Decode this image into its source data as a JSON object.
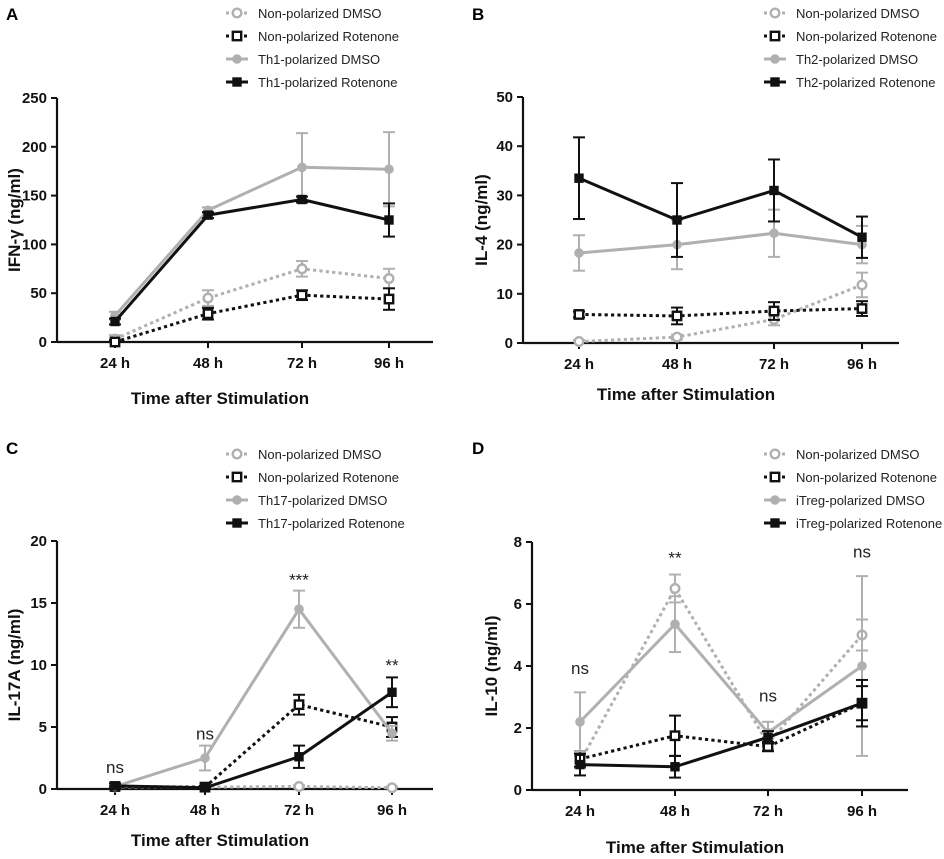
{
  "chart_data": [
    {
      "panel": "A",
      "type": "line",
      "xlabel": "Time after Stimulation",
      "ylabel": "IFN-γ (ng/ml)",
      "categories": [
        "24 h",
        "48 h",
        "72 h",
        "96 h"
      ],
      "ylim": [
        0,
        250
      ],
      "yticks": [
        "0",
        "50",
        "100",
        "150",
        "200",
        "250"
      ],
      "series": [
        {
          "name": "Non-polarized DMSO",
          "color": "#b0b0b0",
          "style": "dotted",
          "marker": "circle-open",
          "values": [
            3,
            45,
            75,
            65
          ],
          "errors": [
            4,
            8,
            8,
            10
          ]
        },
        {
          "name": "Non-polarized Rotenone",
          "color": "#111111",
          "style": "dotted",
          "marker": "square-open",
          "values": [
            0,
            29,
            48,
            44
          ],
          "errors": [
            2,
            6,
            5,
            11
          ]
        },
        {
          "name": "Th1-polarized DMSO",
          "color": "#b0b0b0",
          "style": "solid",
          "marker": "circle",
          "values": [
            27,
            135,
            179,
            177
          ],
          "errors": [
            4,
            3,
            35,
            38
          ]
        },
        {
          "name": "Th1-polarized Rotenone",
          "color": "#111111",
          "style": "solid",
          "marker": "square",
          "values": [
            21,
            130,
            146,
            125
          ],
          "errors": [
            3,
            3,
            3,
            17
          ]
        }
      ],
      "annotations": []
    },
    {
      "panel": "B",
      "type": "line",
      "xlabel": "Time after Stimulation",
      "ylabel": "IL-4 (ng/ml)",
      "categories": [
        "24 h",
        "48 h",
        "72 h",
        "96 h"
      ],
      "ylim": [
        0,
        50
      ],
      "yticks": [
        "0",
        "10",
        "20",
        "30",
        "40",
        "50"
      ],
      "series": [
        {
          "name": "Non-polarized DMSO",
          "color": "#b0b0b0",
          "style": "dotted",
          "marker": "circle-open",
          "values": [
            0.3,
            1.2,
            4.8,
            11.8
          ],
          "errors": [
            0.3,
            0.5,
            1.2,
            2.5
          ]
        },
        {
          "name": "Non-polarized Rotenone",
          "color": "#111111",
          "style": "dotted",
          "marker": "square-open",
          "values": [
            5.8,
            5.5,
            6.5,
            7.0
          ],
          "errors": [
            0.6,
            1.7,
            1.8,
            1.5
          ]
        },
        {
          "name": "Th2-polarized DMSO",
          "color": "#b0b0b0",
          "style": "solid",
          "marker": "circle",
          "values": [
            18.3,
            20.0,
            22.3,
            20.0
          ],
          "errors": [
            3.6,
            5.0,
            4.8,
            3.8
          ]
        },
        {
          "name": "Th2-polarized Rotenone",
          "color": "#111111",
          "style": "solid",
          "marker": "square",
          "values": [
            33.5,
            25.0,
            31.0,
            21.5
          ],
          "errors": [
            8.3,
            7.5,
            6.3,
            4.2
          ]
        }
      ],
      "annotations": []
    },
    {
      "panel": "C",
      "type": "line",
      "xlabel": "Time after Stimulation",
      "ylabel": "IL-17A (ng/ml)",
      "categories": [
        "24 h",
        "48 h",
        "72 h",
        "96 h"
      ],
      "ylim": [
        0,
        20
      ],
      "yticks": [
        "0",
        "5",
        "10",
        "15",
        "20"
      ],
      "series": [
        {
          "name": "Non-polarized DMSO",
          "color": "#b0b0b0",
          "style": "dotted",
          "marker": "circle-open",
          "values": [
            0.15,
            0.15,
            0.2,
            0.1
          ],
          "errors": [
            0.1,
            0.1,
            0.1,
            0.1
          ]
        },
        {
          "name": "Non-polarized Rotenone",
          "color": "#111111",
          "style": "dotted",
          "marker": "square-open",
          "values": [
            0.2,
            0.15,
            6.8,
            5.0
          ],
          "errors": [
            0.1,
            0.1,
            0.8,
            0.8
          ]
        },
        {
          "name": "Th17-polarized DMSO",
          "color": "#b0b0b0",
          "style": "solid",
          "marker": "circle",
          "values": [
            0.2,
            2.5,
            14.5,
            4.5
          ],
          "errors": [
            0.2,
            1.0,
            1.5,
            0.6
          ]
        },
        {
          "name": "Th17-polarized Rotenone",
          "color": "#111111",
          "style": "solid",
          "marker": "square",
          "values": [
            0.25,
            0.1,
            2.6,
            7.8
          ],
          "errors": [
            0.2,
            0.1,
            0.9,
            1.2
          ]
        }
      ],
      "annotations": [
        {
          "category": "24 h",
          "label": "ns",
          "y": 1.3
        },
        {
          "category": "48 h",
          "label": "ns",
          "y": 4.0
        },
        {
          "category": "72 h",
          "label": "***",
          "y": 16.4
        },
        {
          "category": "96 h",
          "label": "**",
          "y": 9.5
        }
      ]
    },
    {
      "panel": "D",
      "type": "line",
      "xlabel": "Time after Stimulation",
      "ylabel": "IL-10 (ng/ml)",
      "categories": [
        "24 h",
        "48 h",
        "72 h",
        "96 h"
      ],
      "ylim": [
        0,
        8
      ],
      "yticks": [
        "0",
        "2",
        "4",
        "6",
        "8"
      ],
      "series": [
        {
          "name": "Non-polarized DMSO",
          "color": "#b0b0b0",
          "style": "dotted",
          "marker": "circle-open",
          "values": [
            0.9,
            6.5,
            1.5,
            5.0
          ],
          "errors": [
            0.2,
            0.45,
            0.2,
            0.5
          ]
        },
        {
          "name": "Non-polarized Rotenone",
          "color": "#111111",
          "style": "dotted",
          "marker": "square-open",
          "values": [
            1.0,
            1.75,
            1.4,
            2.8
          ],
          "errors": [
            0.25,
            0.65,
            0.15,
            0.55
          ]
        },
        {
          "name": "iTreg-polarized DMSO",
          "color": "#b0b0b0",
          "style": "solid",
          "marker": "circle",
          "values": [
            2.2,
            5.35,
            1.85,
            4.0
          ],
          "errors": [
            0.95,
            0.9,
            0.35,
            2.9
          ]
        },
        {
          "name": "iTreg-polarized Rotenone",
          "color": "#111111",
          "style": "solid",
          "marker": "square",
          "values": [
            0.82,
            0.75,
            1.7,
            2.8
          ],
          "errors": [
            0.35,
            0.35,
            0.2,
            0.75
          ]
        }
      ],
      "annotations": [
        {
          "category": "24 h",
          "label": "ns",
          "y": 3.75
        },
        {
          "category": "48 h",
          "label": "**",
          "y": 7.3
        },
        {
          "category": "72 h",
          "label": "ns",
          "y": 2.85
        },
        {
          "category": "96 h",
          "label": "ns",
          "y": 7.5
        }
      ]
    }
  ]
}
